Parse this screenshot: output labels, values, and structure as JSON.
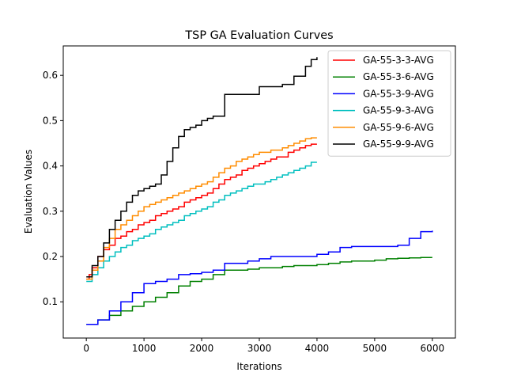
{
  "chart_data": {
    "type": "line",
    "title": "TSP GA Evaluation Curves",
    "xlabel": "Iterations",
    "ylabel": "Evaluation Values",
    "xlim": [
      -400,
      6400
    ],
    "ylim": [
      0.02,
      0.665
    ],
    "xticks": [
      0,
      1000,
      2000,
      3000,
      4000,
      5000,
      6000
    ],
    "yticks": [
      0.1,
      0.2,
      0.3,
      0.4,
      0.5,
      0.6
    ],
    "xtick_labels": [
      "0",
      "1000",
      "2000",
      "3000",
      "4000",
      "5000",
      "6000"
    ],
    "ytick_labels": [
      "0.1",
      "0.2",
      "0.3",
      "0.4",
      "0.5",
      "0.6"
    ],
    "grid": false,
    "legend_position": "top-right",
    "series": [
      {
        "name": "GA-55-3-3-AVG",
        "color": "#ff0000",
        "x": [
          0,
          50,
          100,
          200,
          300,
          400,
          500,
          600,
          700,
          800,
          900,
          1000,
          1100,
          1200,
          1300,
          1400,
          1500,
          1600,
          1700,
          1800,
          1900,
          2000,
          2100,
          2200,
          2300,
          2400,
          2500,
          2600,
          2700,
          2800,
          2900,
          3000,
          3100,
          3200,
          3300,
          3400,
          3500,
          3600,
          3700,
          3800,
          3900,
          4000
        ],
        "values": [
          0.15,
          0.16,
          0.175,
          0.2,
          0.215,
          0.225,
          0.24,
          0.245,
          0.255,
          0.26,
          0.27,
          0.275,
          0.28,
          0.29,
          0.295,
          0.3,
          0.305,
          0.31,
          0.32,
          0.325,
          0.33,
          0.335,
          0.34,
          0.35,
          0.36,
          0.37,
          0.375,
          0.38,
          0.39,
          0.395,
          0.4,
          0.405,
          0.41,
          0.415,
          0.42,
          0.42,
          0.43,
          0.435,
          0.44,
          0.445,
          0.448,
          0.448
        ]
      },
      {
        "name": "GA-55-3-6-AVG",
        "color": "#008000",
        "x": [
          0,
          200,
          400,
          600,
          800,
          1000,
          1200,
          1400,
          1600,
          1800,
          2000,
          2200,
          2400,
          2600,
          2800,
          3000,
          3200,
          3400,
          3600,
          3800,
          4000,
          4200,
          4400,
          4600,
          4800,
          5000,
          5200,
          5400,
          5600,
          5800,
          6000
        ],
        "values": [
          0.05,
          0.06,
          0.07,
          0.08,
          0.09,
          0.1,
          0.11,
          0.12,
          0.135,
          0.145,
          0.15,
          0.16,
          0.17,
          0.17,
          0.172,
          0.175,
          0.175,
          0.178,
          0.18,
          0.18,
          0.182,
          0.185,
          0.188,
          0.19,
          0.19,
          0.192,
          0.195,
          0.196,
          0.197,
          0.198,
          0.198
        ]
      },
      {
        "name": "GA-55-3-9-AVG",
        "color": "#0000ff",
        "x": [
          0,
          200,
          400,
          600,
          800,
          1000,
          1200,
          1400,
          1600,
          1800,
          2000,
          2200,
          2400,
          2600,
          2800,
          3000,
          3200,
          3400,
          3600,
          3800,
          4000,
          4200,
          4400,
          4600,
          4800,
          5000,
          5200,
          5400,
          5600,
          5800,
          6000
        ],
        "values": [
          0.05,
          0.06,
          0.08,
          0.1,
          0.12,
          0.14,
          0.145,
          0.15,
          0.16,
          0.162,
          0.165,
          0.17,
          0.185,
          0.185,
          0.19,
          0.195,
          0.2,
          0.2,
          0.2,
          0.2,
          0.205,
          0.21,
          0.22,
          0.222,
          0.222,
          0.222,
          0.222,
          0.225,
          0.24,
          0.255,
          0.257
        ]
      },
      {
        "name": "GA-55-9-3-AVG",
        "color": "#00bfbf",
        "x": [
          0,
          100,
          200,
          300,
          400,
          500,
          600,
          700,
          800,
          900,
          1000,
          1100,
          1200,
          1300,
          1400,
          1500,
          1600,
          1700,
          1800,
          1900,
          2000,
          2100,
          2200,
          2300,
          2400,
          2500,
          2600,
          2700,
          2800,
          2900,
          3000,
          3100,
          3200,
          3300,
          3400,
          3500,
          3600,
          3700,
          3800,
          3900,
          4000
        ],
        "values": [
          0.145,
          0.16,
          0.175,
          0.19,
          0.2,
          0.21,
          0.22,
          0.225,
          0.235,
          0.24,
          0.245,
          0.25,
          0.26,
          0.265,
          0.27,
          0.275,
          0.28,
          0.29,
          0.295,
          0.3,
          0.305,
          0.31,
          0.32,
          0.325,
          0.335,
          0.34,
          0.345,
          0.35,
          0.355,
          0.36,
          0.36,
          0.365,
          0.37,
          0.375,
          0.38,
          0.385,
          0.39,
          0.395,
          0.4,
          0.408,
          0.408
        ]
      },
      {
        "name": "GA-55-9-6-AVG",
        "color": "#ff8c00",
        "x": [
          0,
          100,
          200,
          300,
          400,
          500,
          600,
          700,
          800,
          900,
          1000,
          1100,
          1200,
          1300,
          1400,
          1500,
          1600,
          1700,
          1800,
          1900,
          2000,
          2100,
          2200,
          2300,
          2400,
          2500,
          2600,
          2700,
          2800,
          2900,
          3000,
          3100,
          3200,
          3300,
          3400,
          3500,
          3600,
          3700,
          3800,
          3900,
          4000
        ],
        "values": [
          0.15,
          0.17,
          0.19,
          0.22,
          0.24,
          0.26,
          0.27,
          0.28,
          0.29,
          0.3,
          0.31,
          0.315,
          0.32,
          0.325,
          0.33,
          0.335,
          0.34,
          0.345,
          0.35,
          0.355,
          0.36,
          0.365,
          0.375,
          0.385,
          0.395,
          0.4,
          0.41,
          0.415,
          0.42,
          0.425,
          0.43,
          0.43,
          0.435,
          0.435,
          0.44,
          0.445,
          0.45,
          0.455,
          0.46,
          0.462,
          0.462
        ]
      },
      {
        "name": "GA-55-9-9-AVG",
        "color": "#000000",
        "x": [
          0,
          100,
          200,
          300,
          400,
          500,
          600,
          700,
          800,
          900,
          1000,
          1100,
          1200,
          1300,
          1400,
          1500,
          1600,
          1700,
          1800,
          1900,
          2000,
          2100,
          2200,
          2400,
          2600,
          2800,
          3000,
          3200,
          3400,
          3600,
          3800,
          3900,
          4000
        ],
        "values": [
          0.155,
          0.18,
          0.2,
          0.23,
          0.26,
          0.28,
          0.3,
          0.32,
          0.335,
          0.345,
          0.35,
          0.355,
          0.36,
          0.38,
          0.41,
          0.44,
          0.465,
          0.48,
          0.485,
          0.49,
          0.5,
          0.505,
          0.51,
          0.558,
          0.558,
          0.558,
          0.575,
          0.575,
          0.58,
          0.598,
          0.62,
          0.635,
          0.64
        ]
      }
    ]
  }
}
